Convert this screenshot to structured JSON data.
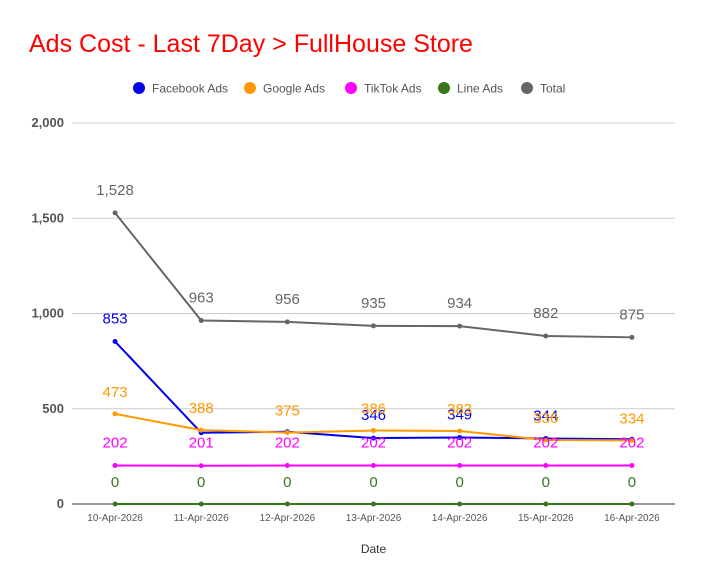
{
  "chart_data": {
    "type": "line",
    "title": "Ads Cost - Last 7Day > FullHouse Store",
    "title_color": "#ff0000",
    "xlabel": "Date",
    "ylabel": "",
    "ylim": [
      0,
      2000
    ],
    "yticks": [
      0,
      500,
      1000,
      1500,
      2000
    ],
    "ytick_labels": [
      "0",
      "500",
      "1,000",
      "1,500",
      "2,000"
    ],
    "grid": true,
    "legend_position": "top",
    "categories": [
      "10-Apr-2026",
      "11-Apr-2026",
      "12-Apr-2026",
      "13-Apr-2026",
      "14-Apr-2026",
      "15-Apr-2026",
      "16-Apr-2026"
    ],
    "series": [
      {
        "name": "Facebook Ads",
        "color": "#0000ee",
        "values": [
          853,
          374,
          379,
          346,
          349,
          344,
          340
        ],
        "labels": [
          "853",
          "",
          "",
          "346",
          "349",
          "344",
          ""
        ]
      },
      {
        "name": "Google Ads",
        "color": "#ff9900",
        "values": [
          473,
          388,
          375,
          386,
          383,
          336,
          334
        ],
        "labels": [
          "473",
          "388",
          "375",
          "386",
          "383",
          "336",
          "334"
        ]
      },
      {
        "name": "TikTok Ads",
        "color": "#ff00ff",
        "values": [
          202,
          201,
          202,
          202,
          202,
          202,
          202
        ],
        "labels": [
          "202",
          "201",
          "202",
          "202",
          "202",
          "202",
          "202"
        ]
      },
      {
        "name": "Line Ads",
        "color": "#38761d",
        "values": [
          0,
          0,
          0,
          0,
          0,
          0,
          0
        ],
        "labels": [
          "0",
          "0",
          "0",
          "0",
          "0",
          "0",
          "0"
        ]
      },
      {
        "name": "Total",
        "color": "#666666",
        "values": [
          1528,
          963,
          956,
          935,
          934,
          882,
          875
        ],
        "labels": [
          "1,528",
          "963",
          "956",
          "935",
          "934",
          "882",
          "875"
        ]
      }
    ]
  }
}
